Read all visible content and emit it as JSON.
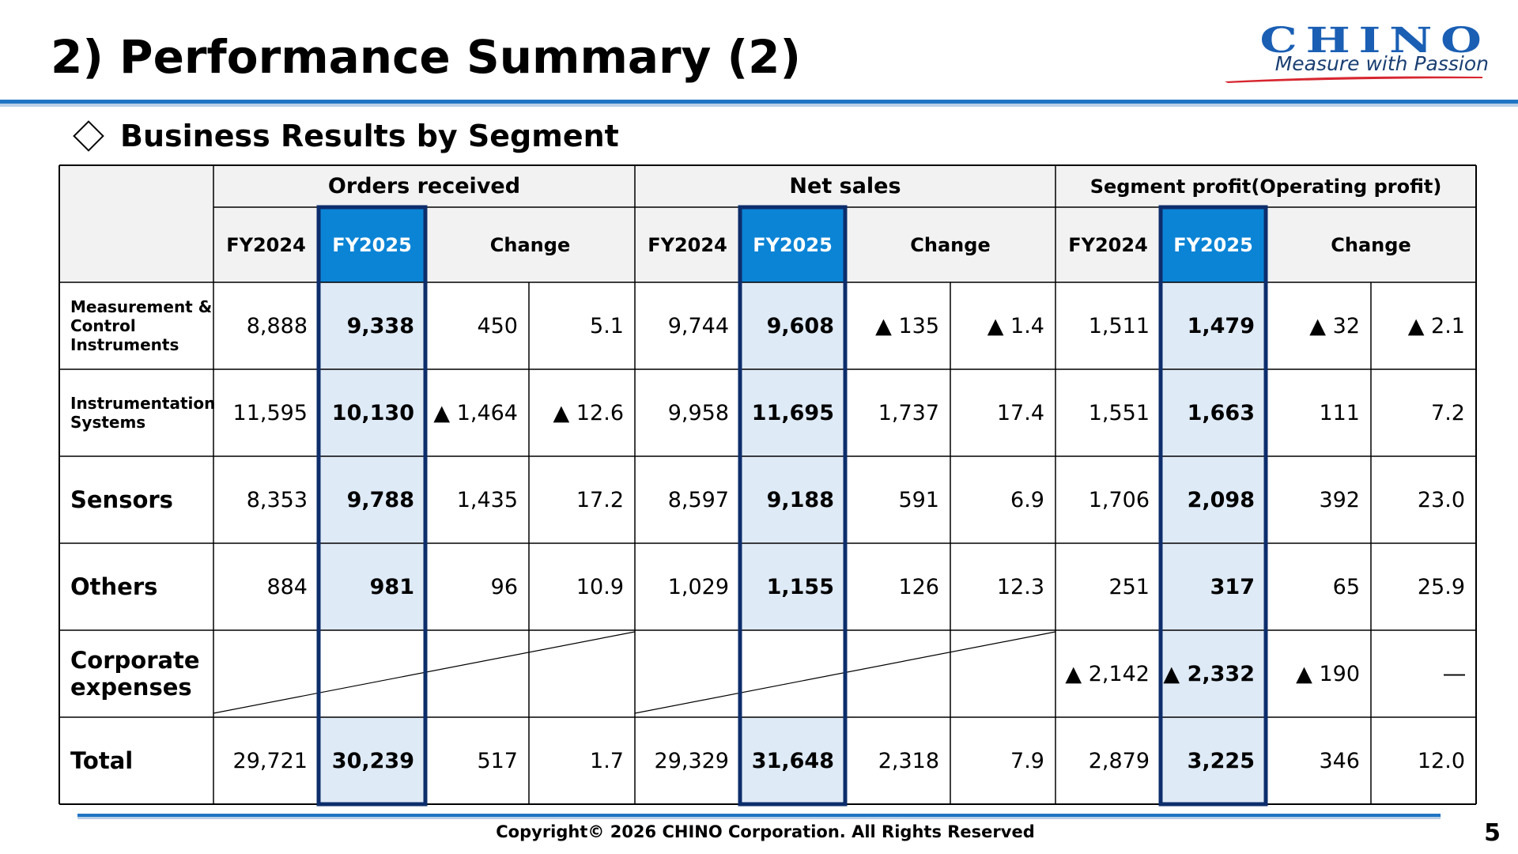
{
  "slide": {
    "title": "2) Performance Summary (2)",
    "section": "Business Results by Segment",
    "copyright": "Copyright© 2026 CHINO Corporation. All Rights Reserved",
    "page_number": "5"
  },
  "logo": {
    "wordmark": "CHINO",
    "tagline": "Measure with Passion",
    "color": "#1a5fb4",
    "swoosh_color": "#d7262f"
  },
  "colors": {
    "header_bg": "#f2f2f2",
    "fy2025_header_bg": "#0b84d6",
    "fy2025_cell_bg": "#deeaf6",
    "highlight_border": "#0d2d6b",
    "rule": "#1f74c4"
  },
  "table": {
    "groups": [
      "Orders received",
      "Net sales",
      "Segment profit(Operating profit)"
    ],
    "subheaders": [
      "FY2024",
      "FY2025",
      "Change"
    ],
    "rows": [
      {
        "label": "Measurement & Control Instruments",
        "style": "small",
        "cells": [
          "8,888",
          "9,338",
          "450",
          "5.1",
          "9,744",
          "9,608",
          "▲ 135",
          "▲ 1.4",
          "1,511",
          "1,479",
          "▲ 32",
          "▲ 2.1"
        ]
      },
      {
        "label": "Instrumentation Systems",
        "style": "small",
        "cells": [
          "11,595",
          "10,130",
          "▲ 1,464",
          "▲ 12.6",
          "9,958",
          "11,695",
          "1,737",
          "17.4",
          "1,551",
          "1,663",
          "111",
          "7.2"
        ]
      },
      {
        "label": "Sensors",
        "style": "large",
        "cells": [
          "8,353",
          "9,788",
          "1,435",
          "17.2",
          "8,597",
          "9,188",
          "591",
          "6.9",
          "1,706",
          "2,098",
          "392",
          "23.0"
        ]
      },
      {
        "label": "Others",
        "style": "large",
        "cells": [
          "884",
          "981",
          "96",
          "10.9",
          "1,029",
          "1,155",
          "126",
          "12.3",
          "251",
          "317",
          "65",
          "25.9"
        ]
      },
      {
        "label": "Corporate expenses",
        "style": "large",
        "cells": [
          "",
          "",
          "",
          "",
          "",
          "",
          "",
          "",
          "▲ 2,142",
          "▲ 2,332",
          "▲ 190",
          "―"
        ]
      },
      {
        "label": "Total",
        "style": "large",
        "cells": [
          "29,721",
          "30,239",
          "517",
          "1.7",
          "29,329",
          "31,648",
          "2,318",
          "7.9",
          "2,879",
          "3,225",
          "346",
          "12.0"
        ]
      }
    ]
  }
}
